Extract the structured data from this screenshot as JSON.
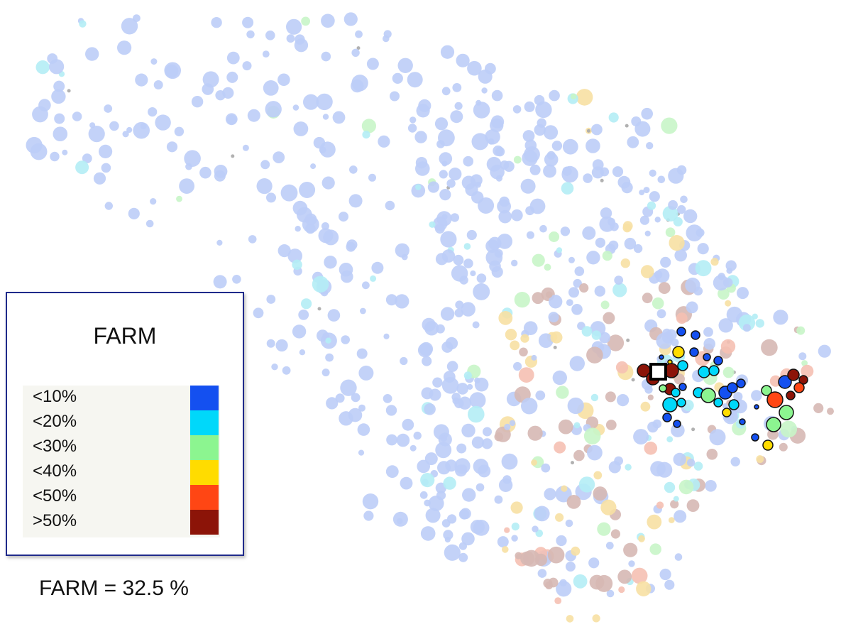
{
  "legend": {
    "title": "FARM",
    "items": [
      {
        "label": "<10%",
        "color": "#1450f0"
      },
      {
        "label": "<20%",
        "color": "#00d8fa"
      },
      {
        "label": "<30%",
        "color": "#8cf590"
      },
      {
        "label": "<40%",
        "color": "#ffdc00"
      },
      {
        "label": "<50%",
        "color": "#ff4614"
      },
      {
        "label": ">50%",
        "color": "#8c1408"
      }
    ]
  },
  "result": {
    "label": "FARM = 32.5 %"
  },
  "colors": {
    "faded_points": [
      "#bccdf7",
      "#d6b8b4",
      "#f7e0a3",
      "#b4edf5",
      "#c8f5c8",
      "#f5c0b3",
      "#a9a9a9"
    ],
    "marker_fill": "#ffffff",
    "marker_stroke": "#000000",
    "legend_border": "#1f2a8a"
  }
}
